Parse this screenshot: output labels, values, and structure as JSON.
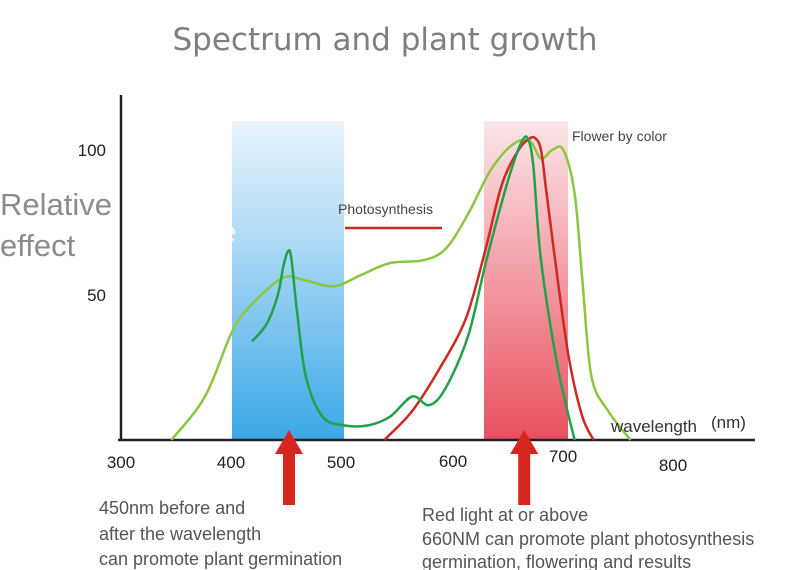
{
  "chart_data": {
    "type": "line",
    "title": "Spectrum and plant growth",
    "ylabel_line1": "Relative",
    "ylabel_line2": "effect",
    "ghost_text": "ve",
    "xlabel": "wavelength",
    "xunit": "(nm)",
    "x_ticks": [
      "300",
      "400",
      "500",
      "600",
      "700",
      "800"
    ],
    "y_ticks": [
      "50",
      "100"
    ],
    "xlim": [
      300,
      800
    ],
    "ylim": [
      0,
      115
    ],
    "bands": [
      {
        "name": "blue band",
        "x0": 400,
        "x1": 500,
        "color": "#4fb3ea"
      },
      {
        "name": "red band",
        "x0": 625,
        "x1": 700,
        "color": "#ec5a6e"
      }
    ],
    "series": [
      {
        "name": "Photosynthesis",
        "color": "#cc2a1e",
        "x": [
          535,
          560,
          585,
          608,
          625,
          640,
          655,
          665,
          670,
          675,
          680,
          690,
          700,
          712,
          722
        ],
        "y": [
          0,
          10,
          25,
          42,
          65,
          88,
          100,
          104,
          104,
          100,
          85,
          55,
          28,
          8,
          0
        ]
      },
      {
        "name": "Flower by color",
        "color": "#8cc63f",
        "x": [
          345,
          375,
          400,
          420,
          445,
          465,
          490,
          515,
          540,
          570,
          590,
          610,
          630,
          650,
          665,
          675,
          685,
          695,
          705,
          712,
          720,
          735,
          755
        ],
        "y": [
          0,
          15,
          38,
          48,
          56,
          55,
          53,
          57,
          61,
          62,
          66,
          78,
          93,
          102,
          103,
          97,
          100,
          100,
          85,
          55,
          22,
          10,
          0
        ]
      }
    ],
    "green_dark": {
      "color": "#23a04a",
      "x": [
        417,
        430,
        440,
        445,
        449,
        452,
        457,
        465,
        480,
        500,
        520,
        540,
        560,
        575,
        590,
        610,
        625,
        640,
        650,
        658,
        663,
        668,
        675,
        690,
        705
      ],
      "y": [
        34,
        40,
        50,
        60,
        65,
        63,
        45,
        22,
        8,
        5,
        5,
        8,
        15,
        12,
        18,
        36,
        60,
        82,
        95,
        103,
        104,
        95,
        62,
        25,
        0
      ]
    },
    "labels": {
      "photosynthesis": "Photosynthesis",
      "flower": "Flower by color"
    },
    "arrows": [
      {
        "x": 450,
        "color": "#d7261b"
      },
      {
        "x": 660,
        "color": "#d7261b"
      }
    ]
  },
  "notes": {
    "left": [
      "450nm before and",
      "after the wavelength",
      "can promote plant germination"
    ],
    "right": [
      "Red light at or above",
      "660NM can promote plant photosynthesis",
      "germination, flowering and results"
    ]
  }
}
